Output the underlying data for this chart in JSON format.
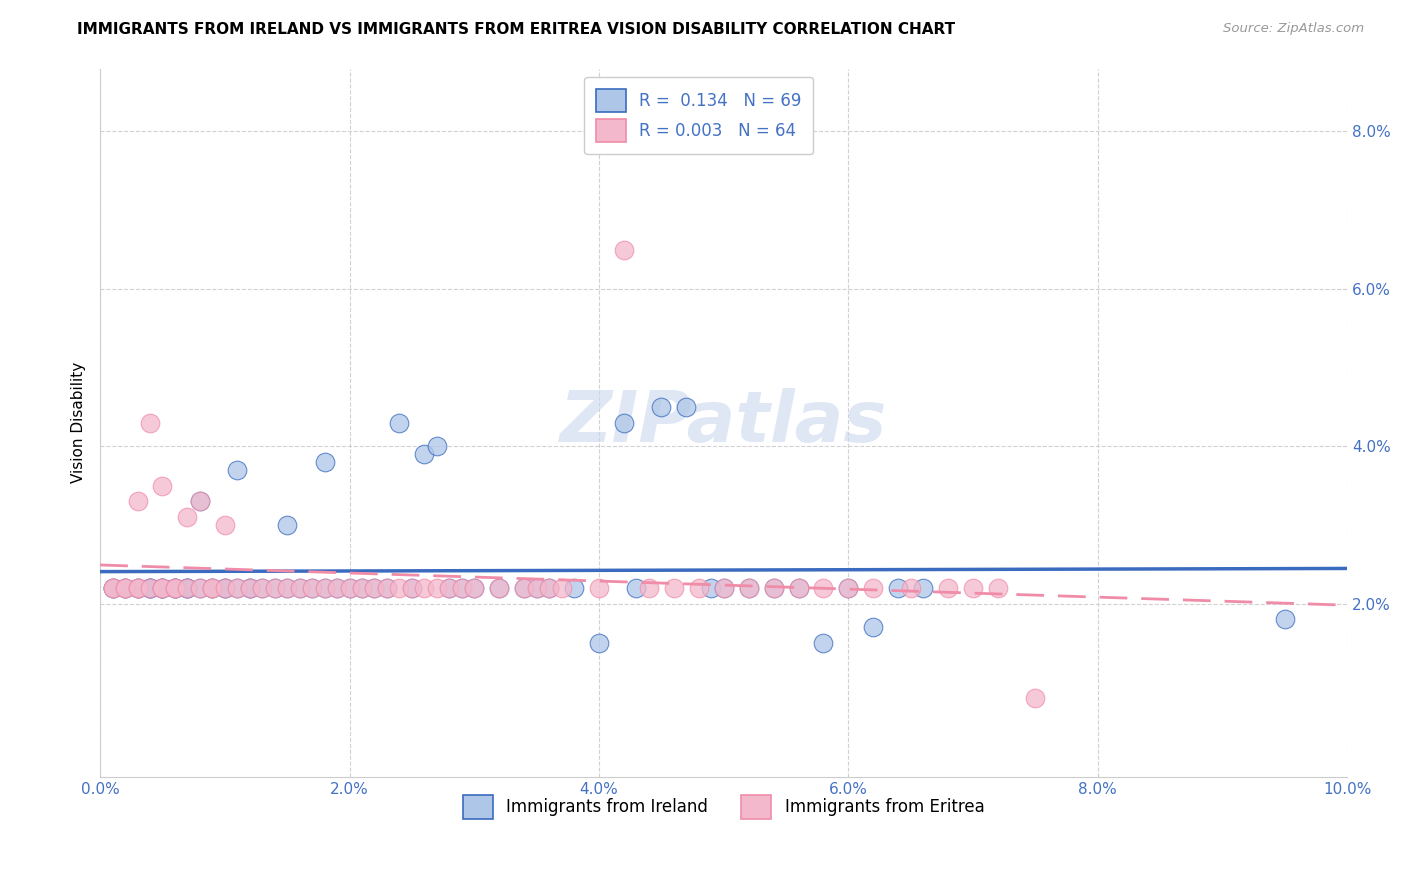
{
  "title": "IMMIGRANTS FROM IRELAND VS IMMIGRANTS FROM ERITREA VISION DISABILITY CORRELATION CHART",
  "source": "Source: ZipAtlas.com",
  "ylabel": "Vision Disability",
  "xlim": [
    0.0,
    0.1
  ],
  "ylim": [
    -0.002,
    0.088
  ],
  "yticks": [
    0.02,
    0.04,
    0.06,
    0.08
  ],
  "xticks": [
    0.0,
    0.02,
    0.04,
    0.06,
    0.08,
    0.1
  ],
  "ireland_color": "#aec6e8",
  "eritrea_color": "#f4b8cc",
  "ireland_line_color": "#3a6bbf",
  "eritrea_line_color": "#f08ca8",
  "ireland_R": 0.134,
  "ireland_N": 69,
  "eritrea_R": 0.003,
  "eritrea_N": 64,
  "ireland_x": [
    0.001,
    0.001,
    0.002,
    0.002,
    0.003,
    0.003,
    0.004,
    0.004,
    0.004,
    0.005,
    0.005,
    0.005,
    0.006,
    0.006,
    0.006,
    0.007,
    0.007,
    0.007,
    0.008,
    0.008,
    0.009,
    0.009,
    0.01,
    0.01,
    0.011,
    0.011,
    0.012,
    0.012,
    0.013,
    0.014,
    0.015,
    0.015,
    0.016,
    0.017,
    0.018,
    0.018,
    0.019,
    0.02,
    0.021,
    0.022,
    0.023,
    0.024,
    0.025,
    0.026,
    0.027,
    0.028,
    0.029,
    0.03,
    0.032,
    0.034,
    0.035,
    0.036,
    0.038,
    0.04,
    0.042,
    0.043,
    0.045,
    0.047,
    0.049,
    0.05,
    0.052,
    0.054,
    0.056,
    0.058,
    0.06,
    0.062,
    0.064,
    0.066,
    0.095
  ],
  "ireland_y": [
    0.022,
    0.022,
    0.022,
    0.022,
    0.022,
    0.022,
    0.022,
    0.022,
    0.022,
    0.022,
    0.022,
    0.022,
    0.022,
    0.022,
    0.022,
    0.022,
    0.022,
    0.022,
    0.033,
    0.022,
    0.022,
    0.022,
    0.022,
    0.022,
    0.037,
    0.022,
    0.022,
    0.022,
    0.022,
    0.022,
    0.022,
    0.03,
    0.022,
    0.022,
    0.038,
    0.022,
    0.022,
    0.022,
    0.022,
    0.022,
    0.022,
    0.043,
    0.022,
    0.039,
    0.04,
    0.022,
    0.022,
    0.022,
    0.022,
    0.022,
    0.022,
    0.022,
    0.022,
    0.015,
    0.043,
    0.022,
    0.045,
    0.045,
    0.022,
    0.022,
    0.022,
    0.022,
    0.022,
    0.015,
    0.022,
    0.017,
    0.022,
    0.022,
    0.018
  ],
  "eritrea_x": [
    0.001,
    0.001,
    0.002,
    0.002,
    0.003,
    0.003,
    0.003,
    0.004,
    0.004,
    0.005,
    0.005,
    0.005,
    0.006,
    0.006,
    0.007,
    0.007,
    0.008,
    0.008,
    0.009,
    0.009,
    0.01,
    0.01,
    0.011,
    0.012,
    0.013,
    0.014,
    0.015,
    0.016,
    0.017,
    0.018,
    0.019,
    0.02,
    0.021,
    0.022,
    0.023,
    0.024,
    0.025,
    0.026,
    0.027,
    0.028,
    0.029,
    0.03,
    0.032,
    0.034,
    0.035,
    0.036,
    0.037,
    0.04,
    0.042,
    0.044,
    0.046,
    0.048,
    0.05,
    0.052,
    0.054,
    0.056,
    0.058,
    0.06,
    0.062,
    0.065,
    0.068,
    0.07,
    0.072,
    0.075
  ],
  "eritrea_y": [
    0.022,
    0.022,
    0.022,
    0.022,
    0.022,
    0.033,
    0.022,
    0.022,
    0.043,
    0.022,
    0.022,
    0.035,
    0.022,
    0.022,
    0.022,
    0.031,
    0.022,
    0.033,
    0.022,
    0.022,
    0.022,
    0.03,
    0.022,
    0.022,
    0.022,
    0.022,
    0.022,
    0.022,
    0.022,
    0.022,
    0.022,
    0.022,
    0.022,
    0.022,
    0.022,
    0.022,
    0.022,
    0.022,
    0.022,
    0.022,
    0.022,
    0.022,
    0.022,
    0.022,
    0.022,
    0.022,
    0.022,
    0.022,
    0.065,
    0.022,
    0.022,
    0.022,
    0.022,
    0.022,
    0.022,
    0.022,
    0.022,
    0.022,
    0.022,
    0.022,
    0.022,
    0.022,
    0.022,
    0.008
  ],
  "watermark": "ZIPatlas",
  "watermark_color": "#c8d8ec",
  "legend_label_ireland": "R =  0.134   N = 69",
  "legend_label_eritrea": "R = 0.003   N = 64",
  "bottom_legend_ireland": "Immigrants from Ireland",
  "bottom_legend_eritrea": "Immigrants from Eritrea"
}
